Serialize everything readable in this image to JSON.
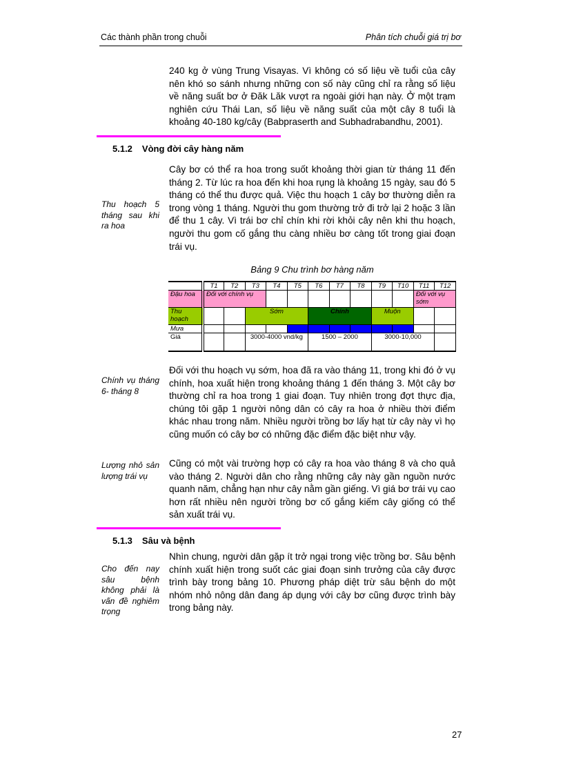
{
  "header": {
    "left": "Các thành phần trong chuỗi",
    "right": "Phân tích chuỗi giá trị bơ"
  },
  "paragraphs": [
    "240 kg ở vùng Trung Visayas. Vì không có số liệu về tuổi của cây nên khó so sánh nhưng những con số này cũng chỉ ra rằng số liệu về năng suất bơ ở Đăk Lăk vượt ra ngoài giới hạn này. Ở một trạm nghiên cứu Thái Lan, số liệu về năng suất của một cây 8 tuổi là khoảng 40-180 kg/cây (Babpraserth and Subhadrabandhu, 2001).",
    "Cây bơ có thể ra hoa trong suốt khoảng thời gian từ tháng 11 đến tháng 2. Từ lúc ra hoa đến khi hoa rụng là khoảng 15 ngày, sau đó 5 tháng có thể thu được quả. Việc thu hoạch 1 cây bơ thường diễn ra trong vòng 1 tháng. Người thu gom thường trở đi trở lại 2 hoặc 3 lần để thu 1 cây. Vì trái bơ chỉ chín khi rời khỏi cây nên khi thu hoạch, người thu gom cố gắng thu càng nhiều bơ càng tốt trong giai đoạn trái vụ.",
    "Đối với thu hoạch vụ sớm, hoa đã ra vào tháng 11, trong khi đó ở vụ chính, hoa xuất hiện trong khoảng tháng 1 đến tháng 3. Một cây bơ thường chỉ ra hoa trong 1 giai đoạn. Tuy nhiên trong đợt thực địa, chúng tôi gặp 1 người nông dân có cây ra hoa ở nhiều thời điểm khác nhau trong năm. Nhiều người trồng bơ lấy hạt từ cây này vì họ cũng muốn có cây bơ có những đặc điểm đặc biệt như vậy.",
    "Cũng có một vài trường hợp có cây ra hoa vào tháng 8 và cho quả vào tháng 2. Người dân cho rằng những cây này gần nguồn nước quanh năm, chẳng hạn như cây nằm gần giếng. Vì giá bơ trái vụ cao hơn rất nhiều nên người trồng bơ cố gắng kiếm cây giống có thể sản xuất trái vụ.",
    "Nhìn chung, người dân gặp ít trở ngại trong việc trồng bơ. Sâu bệnh chính xuất hiện trong suốt các giai đoạn sinh trưởng của cây được trình bày trong bảng 10. Phương pháp diệt trừ sâu bệnh do một nhóm nhỏ nông dân đang áp dụng với cây bơ cũng được trình bày trong bảng này."
  ],
  "notes": [
    "Thu hoạch 5 tháng sau khi ra hoa",
    "Chính vụ tháng 6- tháng 8",
    "Lượng nhỏ sản lượng trái vụ",
    "Cho đến nay sâu bệnh không phải là vấn đề nghiêm trọng"
  ],
  "sections": [
    {
      "num": "5.1.2",
      "title": "Vòng đời cây hàng năm"
    },
    {
      "num": "5.1.3",
      "title": "Sâu và bệnh"
    }
  ],
  "table": {
    "caption": "Bảng 9 Chu trình bơ hàng năm",
    "months": [
      "T1",
      "T2",
      "T3",
      "T4",
      "T5",
      "T6",
      "T7",
      "T8",
      "T9",
      "T10",
      "T11",
      "T12"
    ],
    "rows": {
      "flower": "Đậu hoa",
      "harvest": "Thu hoạch",
      "rain": "Mưa",
      "price": "Giá"
    },
    "flower_main": "Đối với chính vụ",
    "flower_early": "Đối với vụ sớm",
    "harvest_early": "Sớm",
    "harvest_main": "Chính",
    "harvest_late": "Muộn",
    "price_early": "3000-4000 vnd/kg",
    "price_main": "1500 – 2000",
    "price_late": "3000-10,000",
    "colors": {
      "flower": "#ff99cc",
      "early_late": "#99cc00",
      "main": "#006600",
      "rain": "#0000ff"
    }
  },
  "page_number": "27"
}
